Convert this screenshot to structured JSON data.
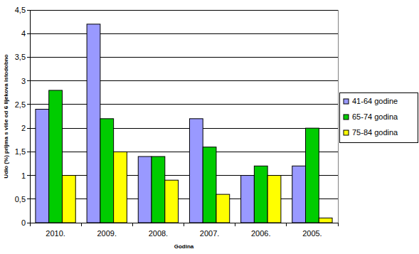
{
  "chart_data": {
    "type": "bar",
    "x_label": "Godina",
    "y_label": "Udio (%) prijma s više od 6 lijekova istodobno",
    "categories": [
      "2010.",
      "2009.",
      "2008.",
      "2007.",
      "2006.",
      "2005."
    ],
    "series": [
      {
        "name": "41-64 godine",
        "color": "#9999ff",
        "values": [
          2.4,
          4.2,
          1.4,
          2.2,
          1.0,
          1.2
        ]
      },
      {
        "name": "65-74 godina",
        "color": "#00cc00",
        "values": [
          2.8,
          2.2,
          1.4,
          1.6,
          1.2,
          2.0
        ]
      },
      {
        "name": "75-84 godina",
        "color": "#ffff00",
        "values": [
          1.0,
          1.5,
          0.9,
          0.6,
          1.0,
          0.1
        ]
      }
    ],
    "ylim": [
      0,
      4.5
    ],
    "yticks": [
      0,
      {
        "value": 0.5,
        "label": "0,5"
      },
      1,
      {
        "value": 1.5,
        "label": "1,5"
      },
      2,
      {
        "value": 2.5,
        "label": "2,5"
      },
      3,
      {
        "value": 3.5,
        "label": "3,5"
      },
      4,
      {
        "value": 4.5,
        "label": "4,5"
      }
    ],
    "grid": true,
    "legend": "right"
  }
}
